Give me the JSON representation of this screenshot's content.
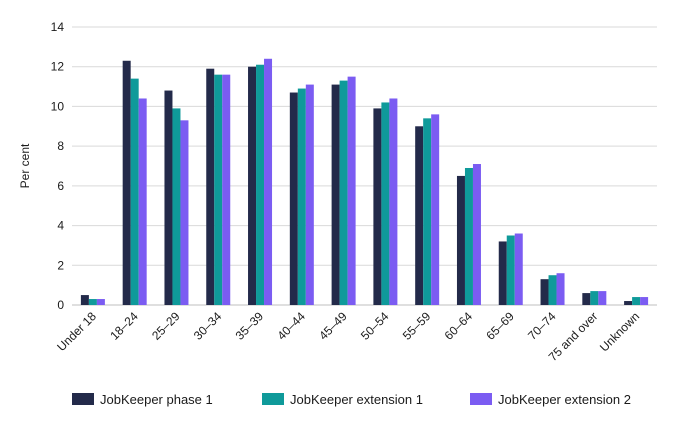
{
  "chart_data": {
    "type": "bar",
    "title": "",
    "xlabel": "",
    "ylabel": "Per cent",
    "ylim": [
      0,
      14
    ],
    "yticks": [
      0,
      2,
      4,
      6,
      8,
      10,
      12,
      14
    ],
    "grid": true,
    "legend_position": "bottom",
    "categories": [
      "Under 18",
      "18–24",
      "25–29",
      "30–34",
      "35–39",
      "40–44",
      "45–49",
      "50–54",
      "55–59",
      "60–64",
      "65–69",
      "70–74",
      "75 and over",
      "Unknown"
    ],
    "series": [
      {
        "name": "JobKeeper phase 1",
        "color": "#232a4a",
        "values": [
          0.5,
          12.3,
          10.8,
          11.9,
          12.0,
          10.7,
          11.1,
          9.9,
          9.0,
          6.5,
          3.2,
          1.3,
          0.6,
          0.2
        ]
      },
      {
        "name": "JobKeeper extension 1",
        "color": "#0f9a9a",
        "values": [
          0.3,
          11.4,
          9.9,
          11.6,
          12.1,
          10.9,
          11.3,
          10.2,
          9.4,
          6.9,
          3.5,
          1.5,
          0.7,
          0.4
        ]
      },
      {
        "name": "JobKeeper extension 2",
        "color": "#7b5cf2",
        "values": [
          0.3,
          10.4,
          9.3,
          11.6,
          12.4,
          11.1,
          11.5,
          10.4,
          9.6,
          7.1,
          3.6,
          1.6,
          0.7,
          0.4
        ]
      }
    ]
  }
}
